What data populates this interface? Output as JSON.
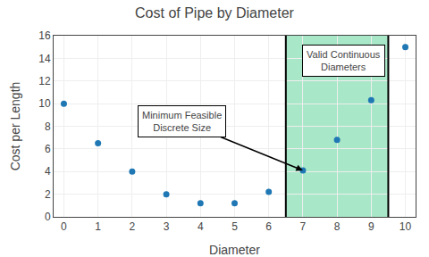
{
  "chart_data": {
    "type": "scatter",
    "title": "Cost of Pipe by Diameter",
    "xlabel": "Diameter",
    "ylabel": "Cost per Length",
    "x": [
      0,
      1,
      2,
      3,
      4,
      5,
      6,
      7,
      8,
      9,
      10
    ],
    "values": [
      10,
      6.5,
      4.0,
      2.0,
      1.2,
      1.2,
      2.2,
      4.1,
      6.8,
      10.3,
      15.0
    ],
    "xlim": [
      -0.3,
      10.3
    ],
    "ylim": [
      0,
      16
    ],
    "xticks": [
      0,
      1,
      2,
      3,
      4,
      5,
      6,
      7,
      8,
      9,
      10
    ],
    "yticks": [
      0,
      2,
      4,
      6,
      8,
      10,
      12,
      14,
      16
    ],
    "grid": true,
    "regions": [
      {
        "x": [
          6.5,
          9.5
        ],
        "color": "#a8e8c8"
      }
    ],
    "annotations": [
      {
        "text": "Minimum Feasible\nDiscrete Size",
        "x": 7.0,
        "y": 4.1
      },
      {
        "text": "Valid Continuous\nDiameters"
      }
    ]
  }
}
